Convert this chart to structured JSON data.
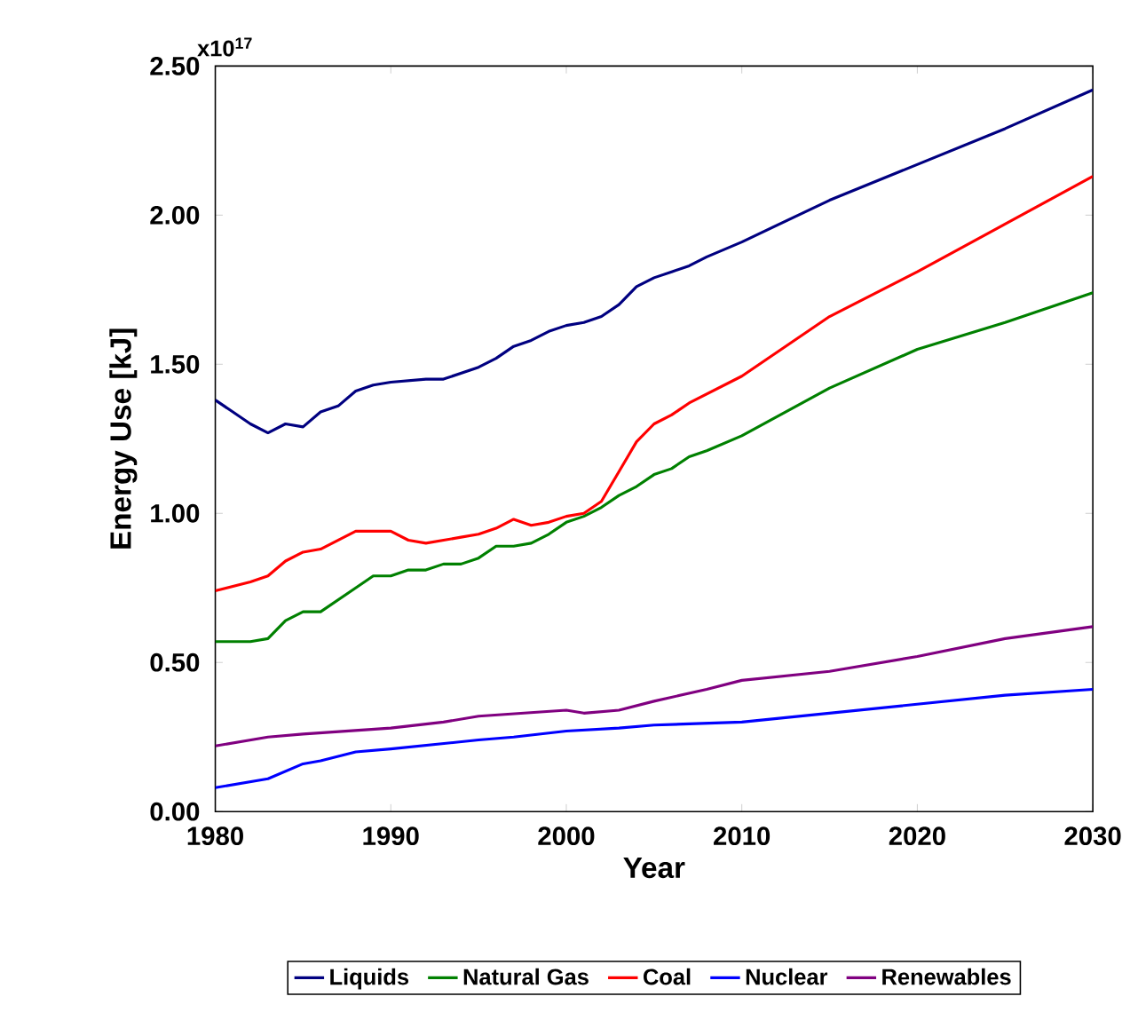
{
  "chart_data": {
    "type": "line",
    "xlabel": "Year",
    "ylabel": "Energy Use [kJ]",
    "annotations": [
      "x10$^{17}$"
    ],
    "xlim": [
      1980,
      2030
    ],
    "xticks": [
      1980,
      1990,
      2000,
      2010,
      2020,
      2030
    ],
    "ylim": [
      0,
      2.5
    ],
    "yticks": [
      {
        "value": 0,
        "label": "0.00"
      },
      {
        "value": 0.5,
        "label": "0.50"
      },
      {
        "value": 1,
        "label": "1.00"
      },
      {
        "value": 1.5,
        "label": "1.50"
      },
      {
        "value": 2,
        "label": "2.00"
      },
      {
        "value": 2.5,
        "label": "2.50"
      }
    ],
    "grid": false,
    "legend": "bottom",
    "marker": "none",
    "line_style": "solid",
    "series": [
      {
        "name": "Liquids",
        "color": "#000080",
        "x": [
          1980,
          1981,
          1982,
          1983,
          1984,
          1985,
          1986,
          1987,
          1988,
          1989,
          1990,
          1992,
          1993,
          1994,
          1995,
          1996,
          1997,
          1998,
          1999,
          2000,
          2001,
          2002,
          2003,
          2004,
          2005,
          2006,
          2007,
          2008,
          2010,
          2015,
          2020,
          2025,
          2030
        ],
        "values": [
          1.38,
          1.34,
          1.3,
          1.27,
          1.3,
          1.29,
          1.34,
          1.36,
          1.41,
          1.43,
          1.44,
          1.45,
          1.45,
          1.47,
          1.49,
          1.52,
          1.56,
          1.58,
          1.61,
          1.63,
          1.64,
          1.66,
          1.7,
          1.76,
          1.79,
          1.81,
          1.83,
          1.86,
          1.91,
          2.05,
          2.17,
          2.29,
          2.42
        ]
      },
      {
        "name": "Natural Gas",
        "color": "#008000",
        "x": [
          1980,
          1982,
          1983,
          1984,
          1985,
          1986,
          1987,
          1988,
          1989,
          1990,
          1991,
          1992,
          1993,
          1994,
          1995,
          1996,
          1997,
          1998,
          1999,
          2000,
          2001,
          2002,
          2003,
          2004,
          2005,
          2006,
          2007,
          2008,
          2010,
          2015,
          2020,
          2025,
          2030
        ],
        "values": [
          0.57,
          0.57,
          0.58,
          0.64,
          0.67,
          0.67,
          0.71,
          0.75,
          0.79,
          0.79,
          0.81,
          0.81,
          0.83,
          0.83,
          0.85,
          0.89,
          0.89,
          0.9,
          0.93,
          0.97,
          0.99,
          1.02,
          1.06,
          1.09,
          1.13,
          1.15,
          1.19,
          1.21,
          1.26,
          1.42,
          1.55,
          1.64,
          1.74
        ]
      },
      {
        "name": "Coal",
        "color": "#ff0000",
        "x": [
          1980,
          1982,
          1983,
          1984,
          1985,
          1986,
          1987,
          1988,
          1989,
          1990,
          1991,
          1992,
          1993,
          1994,
          1995,
          1996,
          1997,
          1998,
          1999,
          2000,
          2001,
          2002,
          2003,
          2004,
          2005,
          2006,
          2007,
          2008,
          2010,
          2015,
          2020,
          2025,
          2030
        ],
        "values": [
          0.74,
          0.77,
          0.79,
          0.84,
          0.87,
          0.88,
          0.91,
          0.94,
          0.94,
          0.94,
          0.91,
          0.9,
          0.91,
          0.92,
          0.93,
          0.95,
          0.98,
          0.96,
          0.97,
          0.99,
          1.0,
          1.04,
          1.14,
          1.24,
          1.3,
          1.33,
          1.37,
          1.4,
          1.46,
          1.66,
          1.81,
          1.97,
          2.13
        ]
      },
      {
        "name": "Nuclear",
        "color": "#0000ff",
        "x": [
          1980,
          1983,
          1985,
          1986,
          1988,
          1990,
          1995,
          1997,
          2000,
          2003,
          2005,
          2010,
          2015,
          2020,
          2025,
          2030
        ],
        "values": [
          0.08,
          0.11,
          0.16,
          0.17,
          0.2,
          0.21,
          0.24,
          0.25,
          0.27,
          0.28,
          0.29,
          0.3,
          0.33,
          0.36,
          0.39,
          0.41
        ]
      },
      {
        "name": "Renewables",
        "color": "#800080",
        "x": [
          1980,
          1983,
          1985,
          1990,
          1993,
          1995,
          2000,
          2001,
          2003,
          2005,
          2008,
          2010,
          2015,
          2020,
          2025,
          2030
        ],
        "values": [
          0.22,
          0.25,
          0.26,
          0.28,
          0.3,
          0.32,
          0.34,
          0.33,
          0.34,
          0.37,
          0.41,
          0.44,
          0.47,
          0.52,
          0.58,
          0.62
        ]
      }
    ]
  }
}
